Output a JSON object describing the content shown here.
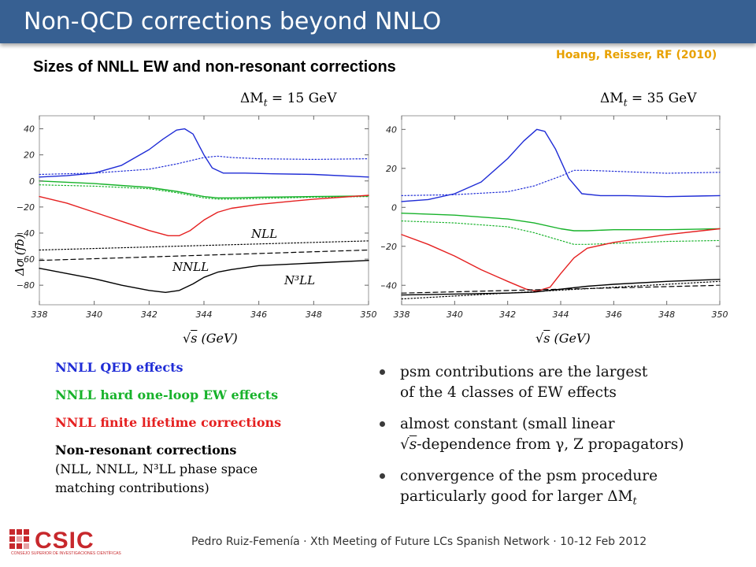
{
  "header": {
    "title": "Non-QCD corrections beyond NNLO"
  },
  "subtitle": "Sizes of NNLL EW and non-resonant corrections",
  "citation": "Hoang,  Reisser, RF (2010)",
  "plots": [
    {
      "label": "ΔM_t = 15 GeV",
      "label_main": "ΔM",
      "label_sub": "t",
      "label_rest": " = 15 GeV",
      "xlabel": "√s (GeV)",
      "xlabel_rest": " (GeV)",
      "ylabel": "Δσ (fb)",
      "annotations": {
        "nll": "NLL",
        "nnll": "NNLL",
        "n3ll": "N³LL"
      }
    },
    {
      "label": "ΔM_t = 35 GeV",
      "label_main": "ΔM",
      "label_sub": "t",
      "label_rest": " = 35 GeV",
      "xlabel": "√s (GeV)",
      "xlabel_rest": " (GeV)"
    }
  ],
  "chart_data": [
    {
      "type": "line",
      "title": "ΔM_t = 15 GeV",
      "xlabel": "√s (GeV)",
      "ylabel": "Δσ (fb)",
      "xlim": [
        338,
        350
      ],
      "ylim": [
        -95,
        50
      ],
      "xticks": [
        338,
        340,
        342,
        344,
        346,
        348,
        350
      ],
      "yticks": [
        40,
        20,
        0,
        -20,
        -40,
        -60,
        -80
      ],
      "series": [
        {
          "name": "NNLL QED effects",
          "color": "#1f2cd6",
          "style": "solid",
          "x": [
            338,
            339,
            340,
            341,
            342,
            342.5,
            343,
            343.3,
            343.6,
            344,
            344.3,
            344.7,
            345.5,
            346.5,
            348,
            350
          ],
          "y": [
            3,
            4,
            6,
            12,
            24,
            32,
            39,
            40,
            36,
            20,
            10,
            6,
            6,
            5.5,
            5,
            3
          ]
        },
        {
          "name": "NNLL QED effects (dotted)",
          "color": "#1f2cd6",
          "style": "dotted",
          "x": [
            338,
            340,
            342,
            343,
            344,
            344.5,
            345,
            346,
            348,
            350
          ],
          "y": [
            5,
            6,
            9,
            13,
            18,
            19,
            18,
            17,
            16.5,
            17
          ]
        },
        {
          "name": "NNLL hard one-loop EW effects",
          "color": "#17b22a",
          "style": "solid",
          "x": [
            338,
            340,
            342,
            343,
            344,
            344.5,
            345,
            346,
            348,
            350
          ],
          "y": [
            0,
            -2,
            -5,
            -8,
            -12,
            -13,
            -13,
            -12.5,
            -12,
            -11.5
          ]
        },
        {
          "name": "NNLL hard one-loop EW effects (dotted)",
          "color": "#17b22a",
          "style": "dotted",
          "x": [
            338,
            340,
            342,
            343,
            344,
            344.5,
            345,
            346,
            348,
            350
          ],
          "y": [
            -3,
            -4,
            -6,
            -9,
            -13,
            -14,
            -14,
            -13.5,
            -12.5,
            -12
          ]
        },
        {
          "name": "NNLL finite lifetime corrections",
          "color": "#e52020",
          "style": "solid",
          "x": [
            338,
            339,
            340,
            341,
            342,
            342.7,
            343.1,
            343.5,
            344,
            344.5,
            345,
            346,
            347,
            348,
            350
          ],
          "y": [
            -12,
            -17,
            -24,
            -31,
            -38,
            -42,
            -42,
            -38,
            -30,
            -24,
            -21,
            -18,
            -16,
            -14,
            -11
          ]
        },
        {
          "name": "NLL",
          "color": "#000000",
          "style": "dotted",
          "x": [
            338,
            350
          ],
          "y": [
            -53,
            -46
          ]
        },
        {
          "name": "NNLL",
          "color": "#000000",
          "style": "dashed",
          "x": [
            338,
            350
          ],
          "y": [
            -61,
            -53
          ]
        },
        {
          "name": "N³LL",
          "color": "#000000",
          "style": "solid",
          "x": [
            338,
            339,
            340,
            341,
            342,
            342.6,
            343.1,
            343.6,
            344,
            344.5,
            345,
            346,
            347,
            348,
            350
          ],
          "y": [
            -67,
            -71,
            -75,
            -80,
            -84,
            -85.5,
            -84,
            -79,
            -74,
            -70,
            -68,
            -65,
            -64,
            -63,
            -61
          ]
        }
      ]
    },
    {
      "type": "line",
      "title": "ΔM_t = 35 GeV",
      "xlabel": "√s (GeV)",
      "ylabel": "",
      "xlim": [
        338,
        350
      ],
      "ylim": [
        -50,
        47
      ],
      "xticks": [
        338,
        340,
        342,
        344,
        346,
        348,
        350
      ],
      "yticks": [
        40,
        20,
        0,
        -20,
        -40
      ],
      "series": [
        {
          "name": "NNLL QED effects",
          "color": "#1f2cd6",
          "style": "solid",
          "x": [
            338,
            339,
            340,
            341,
            342,
            342.6,
            343.1,
            343.4,
            343.8,
            344.3,
            344.8,
            345.5,
            346.5,
            348,
            350
          ],
          "y": [
            3,
            4,
            7,
            13,
            25,
            34,
            40,
            39,
            30,
            15,
            7,
            6,
            6,
            5.5,
            6
          ]
        },
        {
          "name": "NNLL QED effects (dotted)",
          "color": "#1f2cd6",
          "style": "dotted",
          "x": [
            338,
            340,
            342,
            343,
            344,
            344.5,
            345,
            346,
            348,
            350
          ],
          "y": [
            6,
            6.5,
            8,
            11,
            16,
            19,
            19,
            18.5,
            17.5,
            18
          ]
        },
        {
          "name": "NNLL hard one-loop EW effects",
          "color": "#17b22a",
          "style": "solid",
          "x": [
            338,
            340,
            342,
            343,
            344,
            344.5,
            345,
            346,
            348,
            350
          ],
          "y": [
            -3,
            -4,
            -6,
            -8,
            -11,
            -12,
            -12,
            -11.5,
            -11.5,
            -11
          ]
        },
        {
          "name": "NNLL hard one-loop EW effects (dotted)",
          "color": "#17b22a",
          "style": "dotted",
          "x": [
            338,
            340,
            342,
            343,
            344,
            344.5,
            345,
            346,
            348,
            350
          ],
          "y": [
            -7,
            -8,
            -10,
            -13,
            -17,
            -19,
            -19,
            -18.5,
            -17.5,
            -17
          ]
        },
        {
          "name": "NNLL finite lifetime corrections",
          "color": "#e52020",
          "style": "solid",
          "x": [
            338,
            339,
            340,
            341,
            342,
            342.7,
            343.1,
            343.6,
            344,
            344.5,
            345,
            346,
            348,
            350
          ],
          "y": [
            -14,
            -19,
            -25,
            -32,
            -38,
            -42,
            -43,
            -41,
            -34,
            -26,
            -21,
            -18,
            -14,
            -11
          ]
        },
        {
          "name": "NLL",
          "color": "#000000",
          "style": "dotted",
          "x": [
            338,
            350
          ],
          "y": [
            -47,
            -38
          ]
        },
        {
          "name": "NNLL",
          "color": "#000000",
          "style": "dashed",
          "x": [
            338,
            350
          ],
          "y": [
            -44,
            -40
          ]
        },
        {
          "name": "N³LL",
          "color": "#000000",
          "style": "solid",
          "x": [
            338,
            340,
            342,
            343,
            344,
            345,
            346,
            348,
            350
          ],
          "y": [
            -45,
            -44.5,
            -44,
            -43.5,
            -42,
            -40.5,
            -39.5,
            -38,
            -37
          ]
        }
      ]
    }
  ],
  "legend": {
    "qed": "NNLL QED effects",
    "hard": "NNLL hard one-loop EW effects",
    "lifetime": "NNLL finite lifetime corrections",
    "nonres_head": "Non-resonant corrections",
    "nonres_line1": "(NLL, NNLL, N³LL phase space",
    "nonres_line2": "matching contributions)"
  },
  "bullets": {
    "b1_line1": "psm contributions are the largest",
    "b1_line2": "of the 4 classes of EW effects",
    "b2_line1": "almost constant (small linear",
    "b2_line2": "-dependence from γ, Z propagators)",
    "b3_line1": "convergence of the psm procedure",
    "b3_line2": "particularly good for larger ΔM",
    "b3_sub": "t"
  },
  "logo": {
    "text": "CSIC",
    "sub": "CONSEJO SUPERIOR DE INVESTIGACIONES CIENTÍFICAS"
  },
  "footer": "Pedro Ruiz-Femenía · Xth Meeting of Future LCs Spanish Network · 10-12 Feb 2012",
  "colors": {
    "title_bar": "#376092",
    "citation": "#e8a100",
    "qed": "#1f2cd6",
    "hard": "#17b22a",
    "lifetime": "#e52020",
    "logo": "#c7282c"
  }
}
